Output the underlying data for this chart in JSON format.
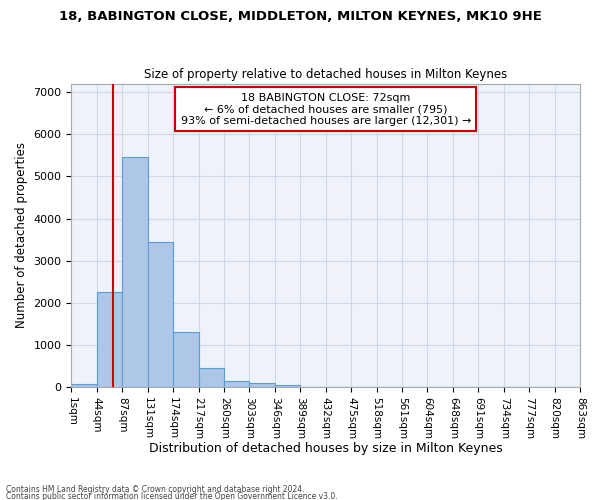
{
  "title1": "18, BABINGTON CLOSE, MIDDLETON, MILTON KEYNES, MK10 9HE",
  "title2": "Size of property relative to detached houses in Milton Keynes",
  "xlabel": "Distribution of detached houses by size in Milton Keynes",
  "ylabel": "Number of detached properties",
  "bar_values": [
    75,
    2270,
    5450,
    3450,
    1310,
    460,
    160,
    95,
    55,
    20,
    8,
    5,
    3,
    2,
    1,
    1,
    0,
    0,
    0,
    0
  ],
  "bin_labels": [
    "1sqm",
    "44sqm",
    "87sqm",
    "131sqm",
    "174sqm",
    "217sqm",
    "260sqm",
    "303sqm",
    "346sqm",
    "389sqm",
    "432sqm",
    "475sqm",
    "518sqm",
    "561sqm",
    "604sqm",
    "648sqm",
    "691sqm",
    "734sqm",
    "777sqm",
    "820sqm",
    "863sqm"
  ],
  "bar_color": "#aec6e8",
  "bar_edge_color": "#5a9fd4",
  "grid_color": "#d0d8e8",
  "background_color": "#eef2fa",
  "annotation_box_text": "18 BABINGTON CLOSE: 72sqm\n← 6% of detached houses are smaller (795)\n93% of semi-detached houses are larger (12,301) →",
  "annotation_box_color": "#ffffff",
  "annotation_box_edge_color": "#cc0000",
  "red_line_x": 72,
  "bin_width": 43,
  "ylim": [
    0,
    7200
  ],
  "yticks": [
    0,
    1000,
    2000,
    3000,
    4000,
    5000,
    6000,
    7000
  ],
  "footer1": "Contains HM Land Registry data © Crown copyright and database right 2024.",
  "footer2": "Contains public sector information licensed under the Open Government Licence v3.0."
}
